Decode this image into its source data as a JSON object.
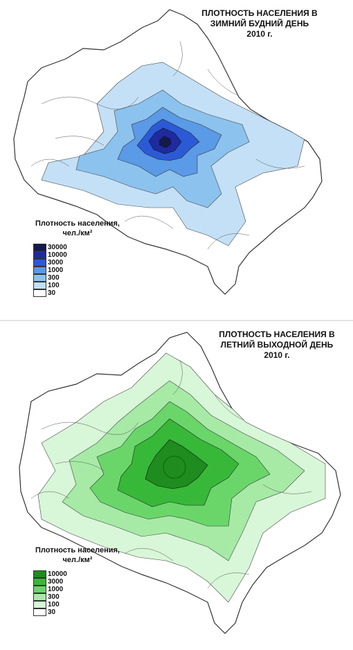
{
  "maps": [
    {
      "title_lines": [
        "ПЛОТНОСТЬ НАСЕЛЕНИЯ В",
        "ЗИМНИЙ БУДНИЙ ДЕНЬ",
        "2010 г."
      ],
      "legend_title_lines": [
        "Плотность населения,",
        "чел./км²"
      ],
      "legend": [
        {
          "label": "30000",
          "color": "#141a4a"
        },
        {
          "label": "10000",
          "color": "#1f2aa0"
        },
        {
          "label": "3000",
          "color": "#2c5ad6"
        },
        {
          "label": "1000",
          "color": "#5a9ae6"
        },
        {
          "label": "300",
          "color": "#8cc2ee"
        },
        {
          "label": "100",
          "color": "#c3e0f6"
        },
        {
          "label": "30",
          "color": "#ffffff"
        }
      ]
    },
    {
      "title_lines": [
        "ПЛОТНОСТЬ НАСЕЛЕНИЯ В",
        "ЛЕТНИЙ ВЫХОДНОЙ ДЕНЬ",
        "2010 г."
      ],
      "legend_title_lines": [
        "Плотность населения,",
        "чел./км²"
      ],
      "legend": [
        {
          "label": "10000",
          "color": "#1e8c1e"
        },
        {
          "label": "3000",
          "color": "#38b838"
        },
        {
          "label": "1000",
          "color": "#6ad66a"
        },
        {
          "label": "300",
          "color": "#a6eaa6"
        },
        {
          "label": "100",
          "color": "#d8f6d8"
        },
        {
          "label": "30",
          "color": "#ffffff"
        }
      ]
    }
  ]
}
